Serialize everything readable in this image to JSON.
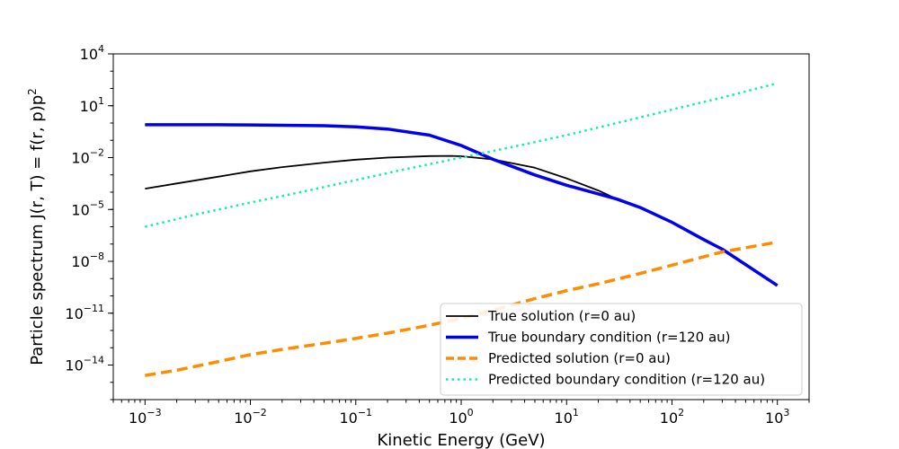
{
  "chart_data": {
    "type": "line",
    "title": "",
    "xlabel": "Kinetic Energy (GeV)",
    "ylabel": "Particle spectrum J(r, T) = f(r, p)p²",
    "xscale": "log",
    "yscale": "log",
    "xlim": [
      0.0005,
      2000
    ],
    "ylim": [
      1e-16,
      10000.0
    ],
    "x_ticks": [
      {
        "value": 0.001,
        "base": "10",
        "exp": "−3"
      },
      {
        "value": 0.01,
        "base": "10",
        "exp": "−2"
      },
      {
        "value": 0.1,
        "base": "10",
        "exp": "−1"
      },
      {
        "value": 1,
        "base": "10",
        "exp": "0"
      },
      {
        "value": 10,
        "base": "10",
        "exp": "1"
      },
      {
        "value": 100,
        "base": "10",
        "exp": "2"
      },
      {
        "value": 1000,
        "base": "10",
        "exp": "3"
      }
    ],
    "y_ticks": [
      {
        "value": 1e-14,
        "base": "10",
        "exp": "−14"
      },
      {
        "value": 1e-11,
        "base": "10",
        "exp": "−11"
      },
      {
        "value": 1e-08,
        "base": "10",
        "exp": "−8"
      },
      {
        "value": 1e-05,
        "base": "10",
        "exp": "−5"
      },
      {
        "value": 0.01,
        "base": "10",
        "exp": "−2"
      },
      {
        "value": 10,
        "base": "10",
        "exp": "1"
      },
      {
        "value": 10000,
        "base": "10",
        "exp": "4"
      }
    ],
    "grid": false,
    "legend_position": "lower-right",
    "series": [
      {
        "name": "True solution (r=0 au)",
        "color": "#000000",
        "style": "solid",
        "x": [
          0.001,
          0.002,
          0.005,
          0.01,
          0.02,
          0.05,
          0.1,
          0.2,
          0.5,
          0.8,
          1,
          2,
          5,
          10,
          20,
          30,
          50,
          100,
          200,
          300,
          1000
        ],
        "y": [
          0.00016,
          0.00032,
          0.00079,
          0.0016,
          0.0028,
          0.0051,
          0.0076,
          0.01,
          0.0122,
          0.0126,
          0.012,
          0.0079,
          0.0026,
          0.00063,
          0.000125,
          4e-05,
          1.3e-05,
          1.8e-06,
          1.8e-07,
          5e-08,
          4e-10
        ]
      },
      {
        "name": "True boundary condition (r=120 au)",
        "color": "#0000ee",
        "style": "solid",
        "x": [
          0.001,
          0.005,
          0.01,
          0.05,
          0.1,
          0.2,
          0.5,
          1,
          2,
          5,
          10,
          20,
          30,
          50,
          100,
          200,
          300,
          1000
        ],
        "y": [
          0.8,
          0.8,
          0.78,
          0.7,
          0.6,
          0.45,
          0.2,
          0.05,
          0.008,
          0.001,
          0.00025,
          8e-05,
          4e-05,
          1.3e-05,
          1.8e-06,
          1.8e-07,
          5e-08,
          4e-10
        ]
      },
      {
        "name": "Predicted solution (r=0 au)",
        "color": "#ff8c00",
        "style": "dashed",
        "x": [
          0.001,
          0.002,
          0.005,
          0.01,
          0.02,
          0.05,
          0.1,
          0.2,
          0.5,
          1,
          2,
          5,
          10,
          20,
          50,
          100,
          300,
          1000
        ],
        "y": [
          2.5e-15,
          5e-15,
          1.6e-14,
          4e-14,
          8e-14,
          1.8e-13,
          3.5e-13,
          7e-13,
          2e-12,
          5e-12,
          1.5e-11,
          7e-11,
          2e-10,
          5e-10,
          2e-09,
          6e-09,
          3.5e-08,
          1.3e-07
        ]
      },
      {
        "name": "Predicted boundary condition (r=120 au)",
        "color": "#11eeaa",
        "style": "dotted",
        "x": [
          0.001,
          0.003,
          0.01,
          0.03,
          0.1,
          0.3,
          1,
          3,
          10,
          30,
          100,
          300,
          1000
        ],
        "y": [
          1e-06,
          5e-06,
          2.5e-05,
          0.0001,
          0.0005,
          0.0022,
          0.01,
          0.04,
          0.2,
          1,
          6,
          30,
          200
        ]
      }
    ]
  }
}
